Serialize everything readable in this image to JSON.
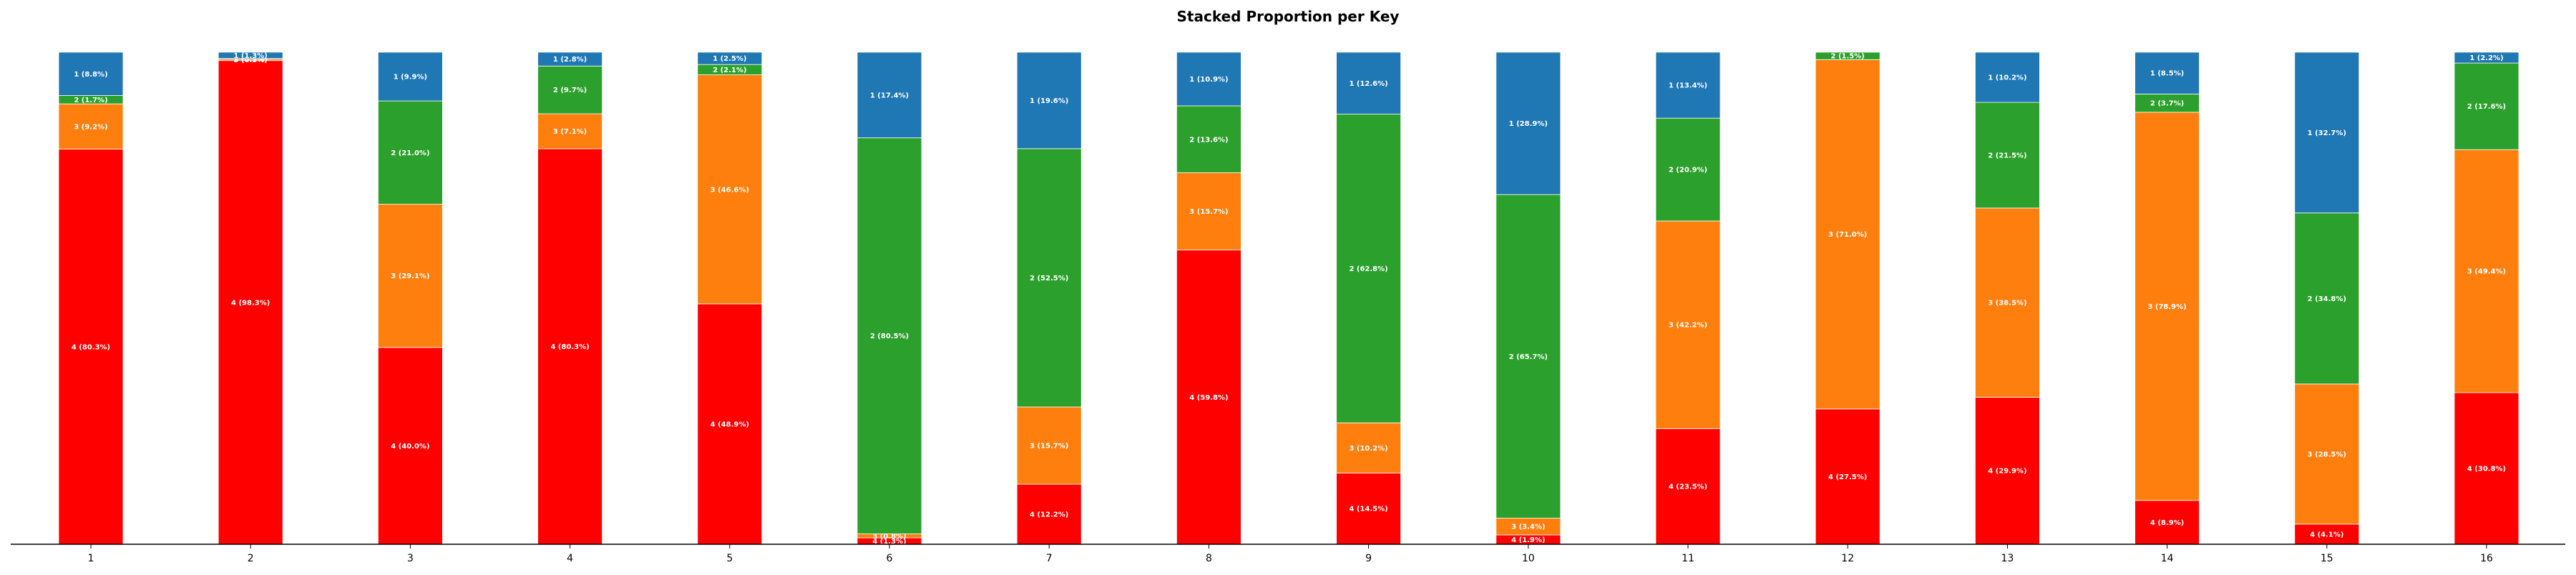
{
  "chart_data": {
    "type": "bar",
    "stacked": true,
    "title": "Stacked Proportion per Key",
    "categories": [
      "1",
      "2",
      "3",
      "4",
      "5",
      "6",
      "7",
      "8",
      "9",
      "10",
      "11",
      "12",
      "13",
      "14",
      "15",
      "16"
    ],
    "ylim": [
      0,
      100
    ],
    "grid": false,
    "legend": "none",
    "series": [
      {
        "key": "4",
        "color": "#ff0000",
        "values": [
          80.3,
          98.3,
          40.0,
          80.3,
          48.9,
          1.3,
          12.2,
          59.8,
          14.5,
          1.9,
          23.5,
          27.5,
          29.9,
          8.9,
          4.1,
          30.8
        ],
        "labels": [
          "4 (80.3%)",
          "4 (98.3%)",
          "4 (40.0%)",
          "4 (80.3%)",
          "4 (48.9%)",
          "4 (1.3%)",
          "4 (12.2%)",
          "4 (59.8%)",
          "4 (14.5%)",
          "4 (1.9%)",
          "4 (23.5%)",
          "4 (27.5%)",
          "4 (29.9%)",
          "4 (8.9%)",
          "4 (4.1%)",
          "4 (30.8%)"
        ]
      },
      {
        "key": "3",
        "color": "#ff7f0e",
        "values": [
          9.2,
          0.3,
          29.1,
          7.1,
          46.6,
          0.8,
          15.7,
          15.7,
          10.2,
          3.4,
          42.2,
          71.0,
          38.5,
          78.9,
          28.5,
          49.4
        ],
        "labels": [
          "3 (9.2%)",
          "3 (0.3%)",
          "3 (29.1%)",
          "3 (7.1%)",
          "3 (46.6%)",
          "3 (0.8%)",
          "3 (15.7%)",
          "3 (15.7%)",
          "3 (10.2%)",
          "3 (3.4%)",
          "3 (42.2%)",
          "3 (71.0%)",
          "3 (38.5%)",
          "3 (78.9%)",
          "3 (28.5%)",
          "3 (49.4%)"
        ]
      },
      {
        "key": "2",
        "color": "#2ca02c",
        "values": [
          1.7,
          0.1,
          21.0,
          9.7,
          2.1,
          80.5,
          52.5,
          13.6,
          62.8,
          65.7,
          20.9,
          1.5,
          21.5,
          3.7,
          34.8,
          17.6
        ],
        "labels": [
          "2 (1.7%)",
          "2 (0.1%)",
          "2 (21.0%)",
          "2 (9.7%)",
          "2 (2.1%)",
          "2 (80.5%)",
          "2 (52.5%)",
          "2 (13.6%)",
          "2 (62.8%)",
          "2 (65.7%)",
          "2 (20.9%)",
          "2 (1.5%)",
          "2 (21.5%)",
          "2 (3.7%)",
          "2 (34.8%)",
          "2 (17.6%)"
        ]
      },
      {
        "key": "1",
        "color": "#1f77b4",
        "values": [
          8.8,
          1.3,
          9.9,
          2.8,
          2.5,
          17.4,
          19.6,
          10.9,
          12.6,
          28.9,
          13.4,
          0.0,
          10.2,
          8.5,
          32.7,
          2.2
        ],
        "labels": [
          "1 (8.8%)",
          "1 (1.3%)",
          "1 (9.9%)",
          "1 (2.8%)",
          "1 (2.5%)",
          "1 (17.4%)",
          "1 (19.6%)",
          "1 (10.9%)",
          "1 (12.6%)",
          "1 (28.9%)",
          "1 (13.4%)",
          "",
          "1 (10.2%)",
          "1 (8.5%)",
          "1 (32.7%)",
          "1 (2.2%)"
        ]
      }
    ]
  }
}
